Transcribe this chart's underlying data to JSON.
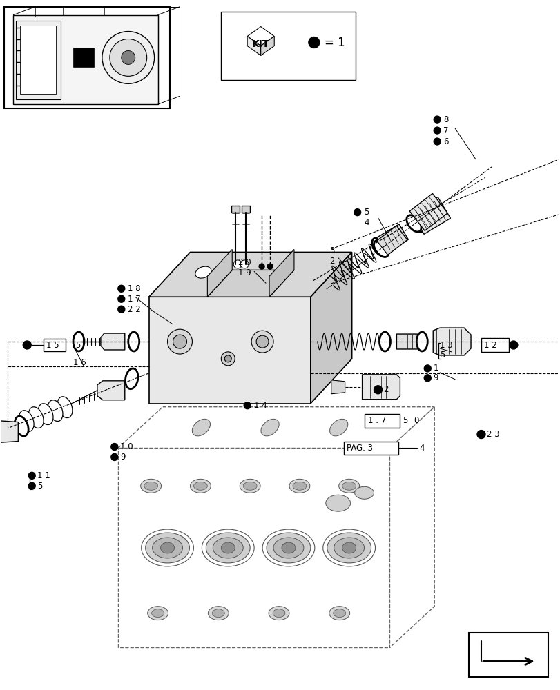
{
  "bg_color": "#ffffff",
  "fig_width": 8.12,
  "fig_height": 10.0,
  "dpi": 100
}
